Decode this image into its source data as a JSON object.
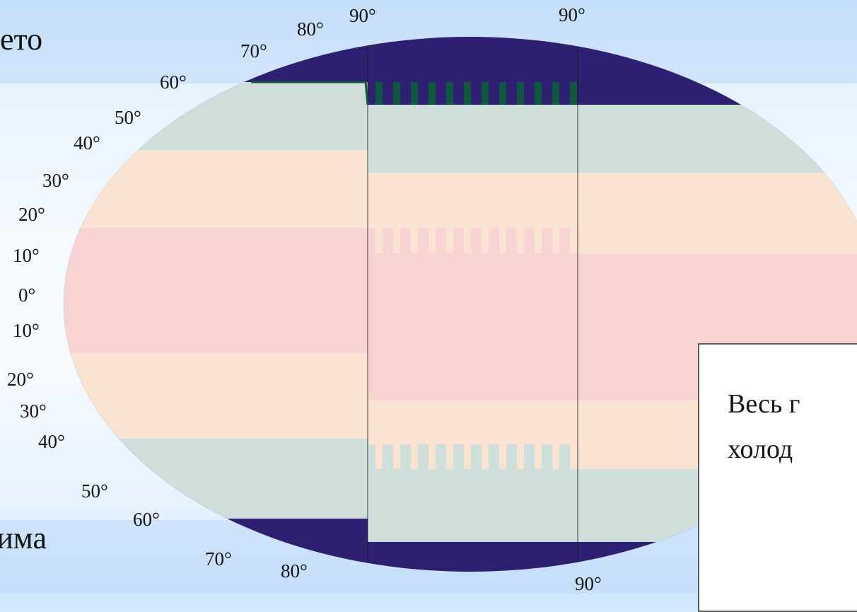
{
  "seasons": {
    "summer": "лето",
    "winter": "зима"
  },
  "latitudes": {
    "top": [
      "90°",
      "90°",
      "80°",
      "70°",
      "60°",
      "50°",
      "40°",
      "30°",
      "20°",
      "10°",
      "0°"
    ],
    "bottom": [
      "10°",
      "20°",
      "30°",
      "40°",
      "50°",
      "60°",
      "70°",
      "80°",
      "90°"
    ]
  },
  "note": {
    "line1": "Весь г",
    "line2": "холод"
  },
  "colors": {
    "polar": "#2e1f72",
    "temperate": "#cedfd9",
    "subtropic": "#fbe3d2",
    "tropic": "#f8d3d4",
    "stripe_polar": "#0d5a3a"
  }
}
